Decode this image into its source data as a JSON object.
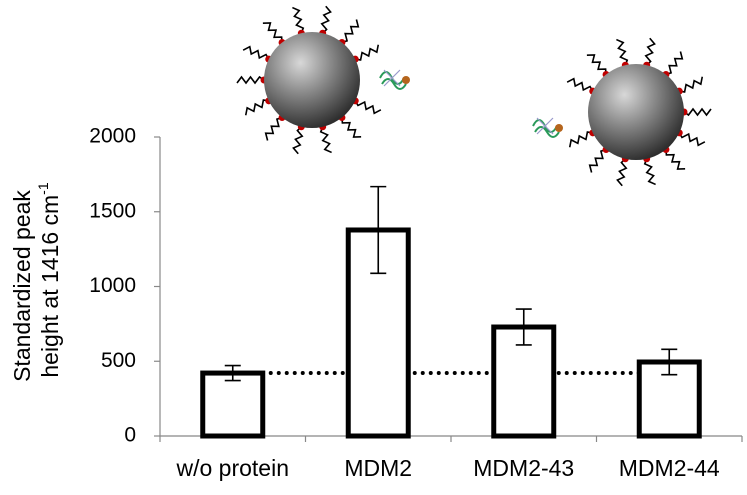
{
  "chart_data": {
    "type": "bar",
    "y_label": {
      "line1": "Standardized peak",
      "line2": "height at 1416 cm",
      "superscript": "-1"
    },
    "categories": [
      "w/o protein",
      "MDM2",
      "MDM2-43",
      "MDM2-44"
    ],
    "values": [
      421,
      1378,
      729,
      495
    ],
    "errors": [
      50,
      290,
      120,
      85
    ],
    "color": "#ffffff",
    "ylim": [
      0,
      2000
    ],
    "yticks": [
      0,
      500,
      1000,
      1500,
      2000
    ],
    "reference_line": true,
    "grid": false
  }
}
